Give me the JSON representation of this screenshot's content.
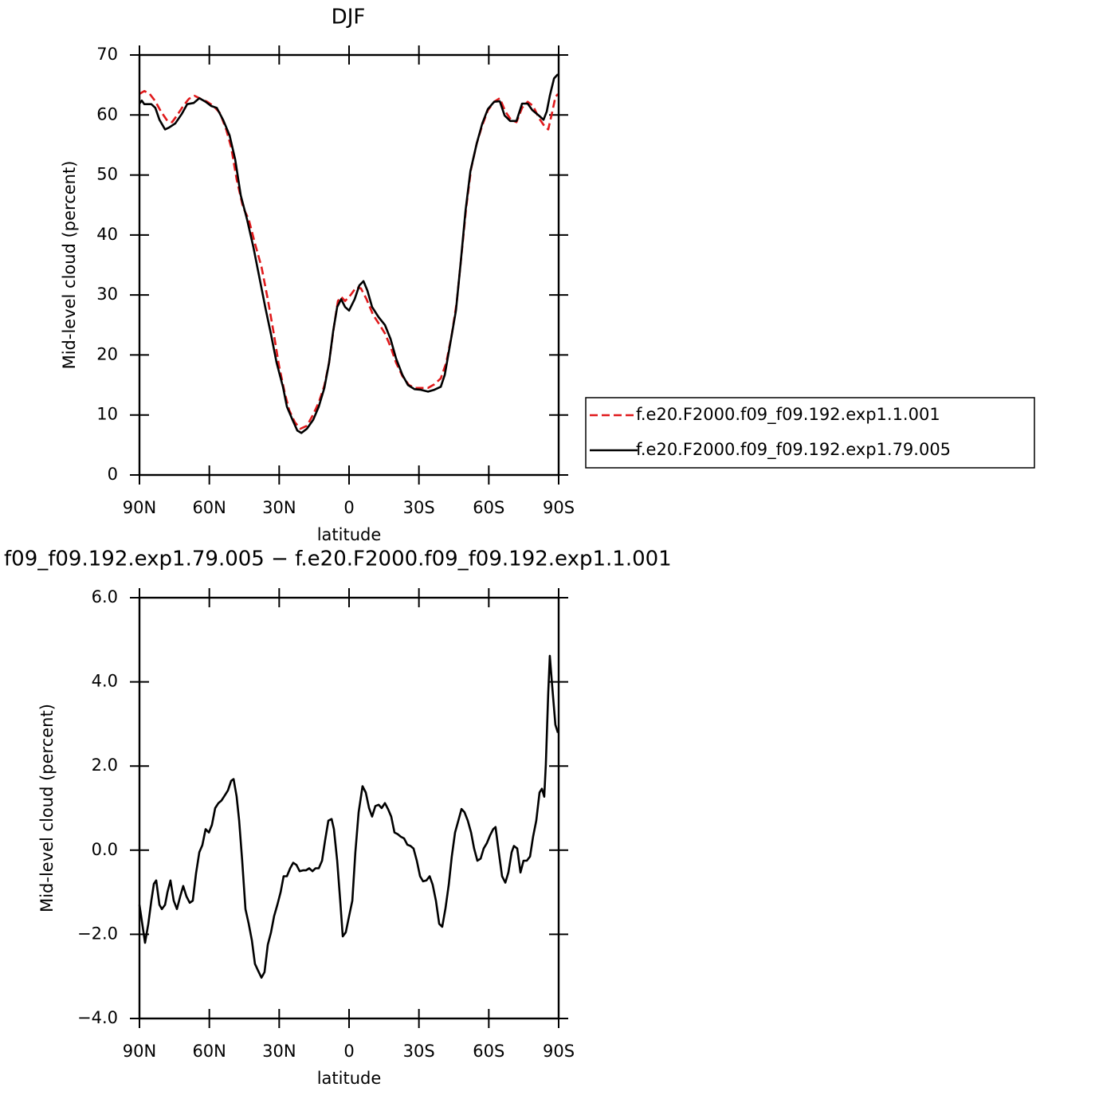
{
  "chart_data": [
    {
      "type": "line",
      "title": "DJF",
      "xlabel": "latitude",
      "ylabel": "Mid-level cloud (percent)",
      "xlim": [
        90,
        -90
      ],
      "xticks": [
        {
          "value": 90,
          "label": "90N"
        },
        {
          "value": 60,
          "label": "60N"
        },
        {
          "value": 30,
          "label": "30N"
        },
        0,
        {
          "value": -30,
          "label": "30S"
        },
        {
          "value": -60,
          "label": "60S"
        },
        {
          "value": -90,
          "label": "90S"
        }
      ],
      "ylim": [
        0,
        70
      ],
      "yticks": [
        0,
        10,
        20,
        30,
        40,
        50,
        60,
        70
      ],
      "legend": "right",
      "series": [
        {
          "name": "f.e20.F2000.f09_f09.192.exp1.1.001",
          "color": "#e0191b",
          "line_style": "dashed",
          "x": [
            90,
            87.9,
            85.6,
            83.2,
            80.8,
            78.0,
            76.0,
            73.9,
            71.2,
            68.8,
            66.4,
            63.7,
            60.9,
            58.2,
            55.4,
            52.7,
            50.6,
            48.3,
            45.5,
            43.1,
            40.4,
            37.6,
            34.9,
            32.5,
            30.1,
            27.7,
            25.7,
            23.3,
            20.9,
            18.1,
            15.4,
            13.0,
            10.6,
            8.6,
            6.5,
            4.8,
            3.4,
            1.7,
            -0.7,
            -3.1,
            -5.1,
            -7.5,
            -10.3,
            -13.0,
            -15.4,
            -17.8,
            -20.2,
            -22.9,
            -25.7,
            -28.4,
            -31.2,
            -33.9,
            -36.6,
            -39.4,
            -41.7,
            -44.1,
            -46.2,
            -48.3,
            -50.3,
            -52.4,
            -54.8,
            -57.2,
            -59.6,
            -62.3,
            -64.7,
            -67.1,
            -69.5,
            -71.9,
            -74.3,
            -76.7,
            -79.0,
            -81.5,
            -83.8,
            -85.5,
            -87.3,
            -88.6,
            -89.7
          ],
          "values": [
            63.5,
            64.0,
            63.5,
            62.3,
            60.6,
            59.0,
            58.8,
            59.9,
            61.5,
            62.7,
            63.2,
            62.7,
            62.2,
            61.5,
            60.3,
            57.5,
            54.6,
            49.3,
            44.6,
            42.6,
            38.6,
            34.7,
            29.3,
            24.0,
            18.3,
            13.8,
            10.8,
            8.8,
            7.7,
            8.2,
            10.1,
            12.1,
            14.9,
            18.7,
            24.7,
            29.0,
            29.7,
            29.0,
            30.0,
            31.3,
            31.1,
            29.3,
            26.7,
            25.1,
            23.6,
            21.4,
            18.7,
            16.5,
            15.0,
            14.5,
            14.5,
            14.5,
            15.1,
            16.1,
            18.7,
            23.4,
            28.7,
            36.7,
            44.6,
            51.0,
            55.2,
            58.3,
            60.8,
            62.2,
            62.8,
            60.6,
            59.2,
            58.8,
            61.2,
            62.2,
            61.5,
            59.5,
            58.2,
            57.6,
            60.6,
            63.0,
            63.5
          ]
        },
        {
          "name": "f.e20.F2000.f09_f09.192.exp1.79.005",
          "color": "#000000",
          "line_style": "solid",
          "x": [
            90,
            89.0,
            87.9,
            84.9,
            83.2,
            81.4,
            79.0,
            77.3,
            74.6,
            71.8,
            69.5,
            66.7,
            64.3,
            61.6,
            59.2,
            56.8,
            54.1,
            51.3,
            48.9,
            46.5,
            43.8,
            41.1,
            38.7,
            36.0,
            33.5,
            31.1,
            28.4,
            26.7,
            24.3,
            22.2,
            20.5,
            18.1,
            15.4,
            13.0,
            10.6,
            8.6,
            6.8,
            5.1,
            3.4,
            1.7,
            0.0,
            -2.4,
            -4.4,
            -6.2,
            -7.9,
            -9.9,
            -12.7,
            -15.4,
            -17.8,
            -20.2,
            -22.9,
            -25.3,
            -28.1,
            -30.8,
            -33.9,
            -36.6,
            -39.4,
            -41.1,
            -43.5,
            -45.9,
            -47.9,
            -50.0,
            -52.1,
            -54.8,
            -57.2,
            -59.6,
            -62.3,
            -64.7,
            -66.8,
            -69.2,
            -71.9,
            -74.3,
            -76.7,
            -78.7,
            -81.5,
            -83.5,
            -84.9,
            -86.2,
            -88.0,
            -89.7
          ],
          "values": [
            61.9,
            62.4,
            61.8,
            61.8,
            61.2,
            59.2,
            57.6,
            57.9,
            58.6,
            60.2,
            61.8,
            62.0,
            62.8,
            62.2,
            61.5,
            61.2,
            59.2,
            56.6,
            52.6,
            46.6,
            42.6,
            38.0,
            33.3,
            28.0,
            23.4,
            18.7,
            14.7,
            11.4,
            9.2,
            7.4,
            7.0,
            7.7,
            9.2,
            11.4,
            14.5,
            18.7,
            24.0,
            28.0,
            29.3,
            28.0,
            27.4,
            29.3,
            31.6,
            32.3,
            30.7,
            28.0,
            26.3,
            25.0,
            22.7,
            19.4,
            16.7,
            15.0,
            14.3,
            14.2,
            13.9,
            14.2,
            14.7,
            16.7,
            22.0,
            27.4,
            35.3,
            44.0,
            50.6,
            55.2,
            58.6,
            61.0,
            62.2,
            62.3,
            59.9,
            59.0,
            59.0,
            61.9,
            61.9,
            60.8,
            59.9,
            59.2,
            60.6,
            63.2,
            66.1,
            66.8
          ]
        }
      ]
    },
    {
      "type": "line",
      "title": "f09_f09.192.exp1.79.005 − f.e20.F2000.f09_f09.192.exp1.1.001",
      "xlabel": "latitude",
      "ylabel": "Mid-level cloud (percent)",
      "xlim": [
        90,
        -90
      ],
      "xticks": [
        {
          "value": 90,
          "label": "90N"
        },
        {
          "value": 60,
          "label": "60N"
        },
        {
          "value": 30,
          "label": "30N"
        },
        0,
        {
          "value": -30,
          "label": "30S"
        },
        {
          "value": -60,
          "label": "60S"
        },
        {
          "value": -90,
          "label": "90S"
        }
      ],
      "ylim": [
        -4,
        6
      ],
      "yticks": [
        {
          "value": -4,
          "label": "−4.0"
        },
        {
          "value": -2,
          "label": "−2.0"
        },
        {
          "value": 0,
          "label": "0.0"
        },
        {
          "value": 2,
          "label": "2.0"
        },
        {
          "value": 4,
          "label": "4.0"
        },
        {
          "value": 6,
          "label": "6.0"
        }
      ],
      "color": "#000000",
      "x": [
        90,
        87.6,
        86.2,
        84.9,
        83.8,
        82.8,
        81.4,
        80.4,
        79.0,
        78.0,
        76.7,
        75.3,
        73.9,
        72.5,
        71.2,
        69.8,
        68.4,
        67.1,
        65.7,
        64.3,
        63.0,
        61.6,
        60.2,
        58.9,
        57.5,
        56.1,
        54.8,
        53.4,
        52.0,
        50.6,
        49.6,
        48.3,
        47.2,
        45.9,
        44.5,
        43.1,
        41.7,
        40.4,
        39.0,
        37.6,
        36.3,
        34.9,
        33.5,
        32.2,
        30.8,
        29.4,
        28.1,
        26.7,
        25.3,
        24.0,
        22.6,
        21.2,
        19.8,
        18.5,
        17.1,
        15.7,
        14.4,
        13.0,
        11.6,
        10.3,
        8.9,
        7.5,
        6.5,
        5.1,
        3.8,
        2.7,
        1.4,
        0.0,
        -1.4,
        -2.7,
        -4.1,
        -5.8,
        -7.2,
        -8.6,
        -9.9,
        -11.3,
        -12.7,
        -14.0,
        -15.4,
        -16.8,
        -18.1,
        -19.5,
        -20.9,
        -22.2,
        -23.6,
        -25.0,
        -26.4,
        -27.7,
        -29.1,
        -30.5,
        -31.8,
        -33.2,
        -34.6,
        -35.9,
        -37.3,
        -38.7,
        -40.0,
        -41.4,
        -42.8,
        -44.1,
        -45.5,
        -46.9,
        -48.3,
        -49.6,
        -51.0,
        -52.4,
        -53.7,
        -55.1,
        -56.5,
        -57.8,
        -59.2,
        -60.6,
        -61.9,
        -62.9,
        -64.3,
        -65.7,
        -67.1,
        -68.4,
        -69.8,
        -70.8,
        -72.2,
        -73.6,
        -74.9,
        -76.3,
        -77.7,
        -79.0,
        -80.4,
        -81.8,
        -82.8,
        -83.8,
        -84.5,
        -85.5,
        -86.2,
        -87.2,
        -88.6,
        -89.7
      ],
      "values": [
        -1.3,
        -2.2,
        -1.75,
        -1.2,
        -0.8,
        -0.72,
        -1.3,
        -1.4,
        -1.3,
        -1.0,
        -0.72,
        -1.2,
        -1.4,
        -1.1,
        -0.85,
        -1.1,
        -1.25,
        -1.2,
        -0.55,
        -0.05,
        0.12,
        0.5,
        0.42,
        0.6,
        1.0,
        1.12,
        1.18,
        1.3,
        1.42,
        1.65,
        1.69,
        1.28,
        0.7,
        -0.25,
        -1.4,
        -1.75,
        -2.15,
        -2.7,
        -2.87,
        -3.03,
        -2.9,
        -2.25,
        -1.95,
        -1.57,
        -1.3,
        -1.0,
        -0.62,
        -0.62,
        -0.43,
        -0.3,
        -0.35,
        -0.5,
        -0.48,
        -0.48,
        -0.43,
        -0.5,
        -0.43,
        -0.43,
        -0.25,
        0.23,
        0.7,
        0.74,
        0.5,
        -0.25,
        -1.2,
        -2.05,
        -1.95,
        -1.57,
        -1.2,
        -0.05,
        0.9,
        1.52,
        1.37,
        1.0,
        0.8,
        1.05,
        1.08,
        1.0,
        1.12,
        0.97,
        0.8,
        0.42,
        0.38,
        0.32,
        0.28,
        0.13,
        0.1,
        0.04,
        -0.25,
        -0.62,
        -0.74,
        -0.72,
        -0.62,
        -0.82,
        -1.2,
        -1.75,
        -1.82,
        -1.38,
        -0.82,
        -0.15,
        0.42,
        0.7,
        0.98,
        0.9,
        0.7,
        0.42,
        0.04,
        -0.25,
        -0.2,
        0.04,
        0.17,
        0.36,
        0.5,
        0.55,
        -0.05,
        -0.62,
        -0.77,
        -0.53,
        -0.05,
        0.1,
        0.04,
        -0.53,
        -0.25,
        -0.25,
        -0.15,
        0.32,
        0.7,
        1.37,
        1.46,
        1.27,
        2.03,
        3.73,
        4.62,
        3.92,
        2.98,
        2.79
      ]
    }
  ]
}
